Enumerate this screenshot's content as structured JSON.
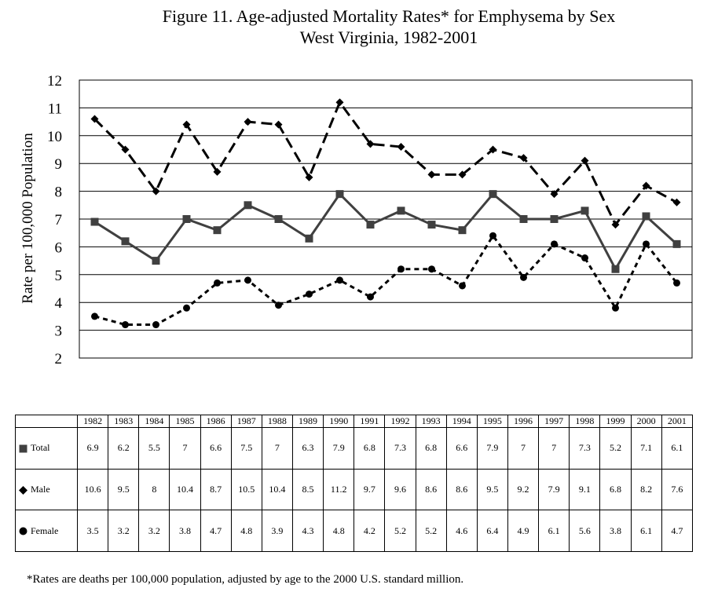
{
  "title_line1": "Figure 11.  Age-adjusted Mortality Rates* for Emphysema by Sex",
  "title_line2": "West Virginia, 1982-2001",
  "footnote": "*Rates are deaths per 100,000 population, adjusted by age to the 2000 U.S. standard million.",
  "chart_data": {
    "type": "line",
    "title": "Figure 11.  Age-adjusted Mortality Rates* for Emphysema by Sex West Virginia, 1982-2001",
    "xlabel": "",
    "ylabel": "Rate per 100,000 Population",
    "ylim": [
      2,
      12
    ],
    "yticks": [
      2,
      3,
      4,
      5,
      6,
      7,
      8,
      9,
      10,
      11,
      12
    ],
    "grid": true,
    "categories": [
      "1982",
      "1983",
      "1984",
      "1985",
      "1986",
      "1987",
      "1988",
      "1989",
      "1990",
      "1991",
      "1992",
      "1993",
      "1994",
      "1995",
      "1996",
      "1997",
      "1998",
      "1999",
      "2000",
      "2001"
    ],
    "series": [
      {
        "name": "Total",
        "marker": "square",
        "line": "solid",
        "color": "#404040",
        "values": [
          6.9,
          6.2,
          5.5,
          7,
          6.6,
          7.5,
          7,
          6.3,
          7.9,
          6.8,
          7.3,
          6.8,
          6.6,
          7.9,
          7,
          7,
          7.3,
          5.2,
          7.1,
          6.1
        ]
      },
      {
        "name": "Male",
        "marker": "diamond",
        "line": "long-dash",
        "color": "#000000",
        "values": [
          10.6,
          9.5,
          8,
          10.4,
          8.7,
          10.5,
          10.4,
          8.5,
          11.2,
          9.7,
          9.6,
          8.6,
          8.6,
          9.5,
          9.2,
          7.9,
          9.1,
          6.8,
          8.2,
          7.6
        ]
      },
      {
        "name": "Female",
        "marker": "circle",
        "line": "short-dash",
        "color": "#000000",
        "values": [
          3.5,
          3.2,
          3.2,
          3.8,
          4.7,
          4.8,
          3.9,
          4.3,
          4.8,
          4.2,
          5.2,
          5.2,
          4.6,
          6.4,
          4.9,
          6.1,
          5.6,
          3.8,
          6.1,
          4.7
        ]
      }
    ],
    "table_labels": {
      "Total": [
        "6.9",
        "6.2",
        "5.5",
        "7",
        "6.6",
        "7.5",
        "7",
        "6.3",
        "7.9",
        "6.8",
        "7.3",
        "6.8",
        "6.6",
        "7.9",
        "7",
        "7",
        "7.3",
        "5.2",
        "7.1",
        "6.1"
      ],
      "Male": [
        "10.6",
        "9.5",
        "8",
        "10.4",
        "8.7",
        "10.5",
        "10.4",
        "8.5",
        "11.2",
        "9.7",
        "9.6",
        "8.6",
        "8.6",
        "9.5",
        "9.2",
        "7.9",
        "9.1",
        "6.8",
        "8.2",
        "7.6"
      ],
      "Female": [
        "3.5",
        "3.2",
        "3.2",
        "3.8",
        "4.7",
        "4.8",
        "3.9",
        "4.3",
        "4.8",
        "4.2",
        "5.2",
        "5.2",
        "4.6",
        "6.4",
        "4.9",
        "6.1",
        "5.6",
        "3.8",
        "6.1",
        "4.7"
      ]
    }
  }
}
